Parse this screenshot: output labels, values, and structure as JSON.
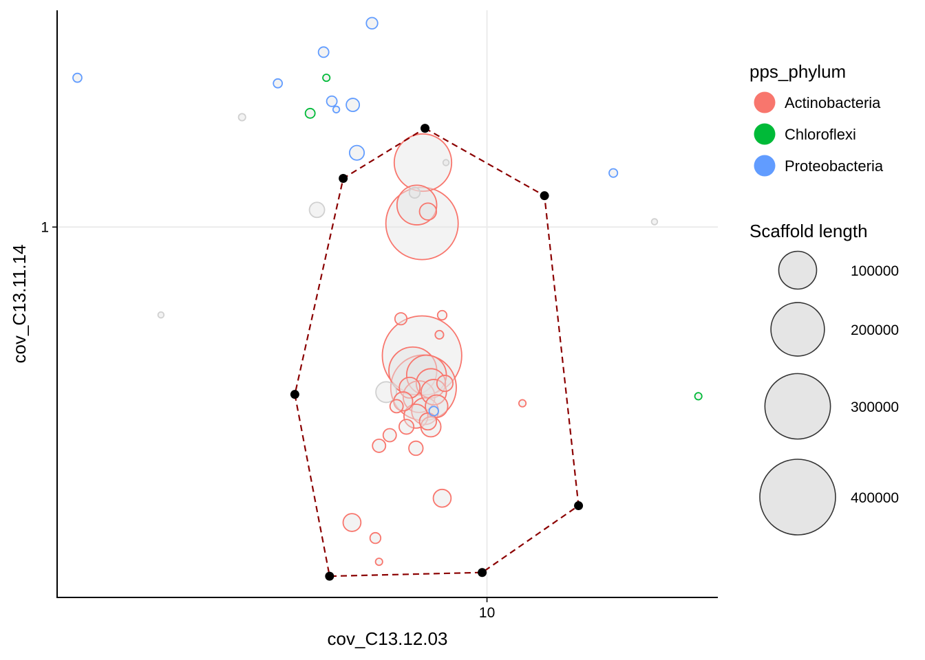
{
  "chart_data": {
    "type": "scatter",
    "xlabel": "cov_C13.12.03",
    "ylabel": "cov_C13.11.14",
    "x_scale": "log10",
    "y_scale": "log10",
    "xlim": [
      1.49,
      27.8
    ],
    "ylim": [
      0.128,
      3.33
    ],
    "x_ticks": [
      {
        "value": 10,
        "label": "10"
      }
    ],
    "y_ticks": [
      {
        "value": 1,
        "label": "1"
      }
    ],
    "grid": true,
    "legend_position": "right",
    "legend": {
      "color_title": "pps_phylum",
      "color_entries": [
        {
          "name": "Actinobacteria",
          "color": "#F8766D"
        },
        {
          "name": "Chloroflexi",
          "color": "#00BA38"
        },
        {
          "name": "Proteobacteria",
          "color": "#619CFF"
        }
      ],
      "size_title": "Scaffold length",
      "size_entries": [
        {
          "label": "100000",
          "value": 100000
        },
        {
          "label": "200000",
          "value": 200000
        },
        {
          "label": "300000",
          "value": 300000
        },
        {
          "label": "400000",
          "value": 400000
        }
      ]
    },
    "fill_color": "#E5E5E5",
    "unassigned_color": "#D0D0D0",
    "hull_color": "#8B0000",
    "selection_hull": [
      {
        "x": 7.6,
        "y": 1.73
      },
      {
        "x": 12.9,
        "y": 1.19
      },
      {
        "x": 15.0,
        "y": 0.213
      },
      {
        "x": 9.79,
        "y": 0.147
      },
      {
        "x": 4.98,
        "y": 0.144
      },
      {
        "x": 4.27,
        "y": 0.395
      },
      {
        "x": 5.29,
        "y": 1.31
      }
    ],
    "points": [
      {
        "phylum": "Proteobacteria",
        "x": 6.01,
        "y": 3.1,
        "length": 9000
      },
      {
        "phylum": "Proteobacteria",
        "x": 4.85,
        "y": 2.64,
        "length": 7500
      },
      {
        "phylum": "Proteobacteria",
        "x": 1.63,
        "y": 2.29,
        "length": 5500
      },
      {
        "phylum": "Proteobacteria",
        "x": 3.96,
        "y": 2.22,
        "length": 5500
      },
      {
        "phylum": "Chloroflexi",
        "x": 4.91,
        "y": 2.29,
        "length": 3500
      },
      {
        "phylum": "Proteobacteria",
        "x": 5.03,
        "y": 2.01,
        "length": 7500
      },
      {
        "phylum": "Proteobacteria",
        "x": 5.52,
        "y": 1.97,
        "length": 12000
      },
      {
        "phylum": "Proteobacteria",
        "x": 5.13,
        "y": 1.92,
        "length": 3000
      },
      {
        "phylum": "Chloroflexi",
        "x": 4.57,
        "y": 1.88,
        "length": 6500
      },
      {
        "phylum": "Unassigned",
        "x": 3.38,
        "y": 1.84,
        "length": 3500
      },
      {
        "phylum": "Proteobacteria",
        "x": 5.62,
        "y": 1.51,
        "length": 15000
      },
      {
        "phylum": "Unassigned",
        "x": 8.34,
        "y": 1.43,
        "length": 2500
      },
      {
        "phylum": "Proteobacteria",
        "x": 17.5,
        "y": 1.35,
        "length": 5000
      },
      {
        "phylum": "Actinobacteria",
        "x": 7.53,
        "y": 1.43,
        "length": 230000
      },
      {
        "phylum": "Unassigned",
        "x": 7.26,
        "y": 1.21,
        "length": 8000
      },
      {
        "phylum": "Actinobacteria",
        "x": 7.33,
        "y": 1.13,
        "length": 110000
      },
      {
        "phylum": "Actinobacteria",
        "x": 7.7,
        "y": 1.09,
        "length": 20000
      },
      {
        "phylum": "Unassigned",
        "x": 4.71,
        "y": 1.1,
        "length": 16000
      },
      {
        "phylum": "Actinobacteria",
        "x": 7.5,
        "y": 1.02,
        "length": 365000
      },
      {
        "phylum": "Unassigned",
        "x": 21.0,
        "y": 1.03,
        "length": 2500
      },
      {
        "phylum": "Unassigned",
        "x": 2.36,
        "y": 0.614,
        "length": 2500
      },
      {
        "phylum": "Actinobacteria",
        "x": 6.83,
        "y": 0.601,
        "length": 10000
      },
      {
        "phylum": "Actinobacteria",
        "x": 8.2,
        "y": 0.613,
        "length": 6000
      },
      {
        "phylum": "Actinobacteria",
        "x": 8.1,
        "y": 0.55,
        "length": 5000
      },
      {
        "phylum": "Actinobacteria",
        "x": 7.5,
        "y": 0.49,
        "length": 440000
      },
      {
        "phylum": "Actinobacteria",
        "x": 7.2,
        "y": 0.45,
        "length": 160000
      },
      {
        "phylum": "Actinobacteria",
        "x": 7.65,
        "y": 0.44,
        "length": 110000
      },
      {
        "phylum": "Actinobacteria",
        "x": 7.8,
        "y": 0.42,
        "length": 60000
      },
      {
        "phylum": "Actinobacteria",
        "x": 7.1,
        "y": 0.41,
        "length": 30000
      },
      {
        "phylum": "Actinobacteria",
        "x": 7.9,
        "y": 0.4,
        "length": 45000
      },
      {
        "phylum": "Actinobacteria",
        "x": 7.4,
        "y": 0.39,
        "length": 70000
      },
      {
        "phylum": "Actinobacteria",
        "x": 6.9,
        "y": 0.38,
        "length": 25000
      },
      {
        "phylum": "Actinobacteria",
        "x": 8.0,
        "y": 0.37,
        "length": 35000
      },
      {
        "phylum": "Actinobacteria",
        "x": 7.6,
        "y": 0.36,
        "length": 50000
      },
      {
        "phylum": "Actinobacteria",
        "x": 7.3,
        "y": 0.35,
        "length": 40000
      },
      {
        "phylum": "Actinobacteria",
        "x": 7.7,
        "y": 0.34,
        "length": 20000
      },
      {
        "phylum": "Actinobacteria",
        "x": 7.0,
        "y": 0.33,
        "length": 15000
      },
      {
        "phylum": "Actinobacteria",
        "x": 6.7,
        "y": 0.37,
        "length": 12000
      },
      {
        "phylum": "Actinobacteria",
        "x": 8.3,
        "y": 0.42,
        "length": 18000
      },
      {
        "phylum": "Actinobacteria",
        "x": 7.55,
        "y": 0.41,
        "length": 300000
      },
      {
        "phylum": "Proteobacteria",
        "x": 7.9,
        "y": 0.36,
        "length": 6000
      },
      {
        "phylum": "Unassigned",
        "x": 6.4,
        "y": 0.4,
        "length": 30000
      },
      {
        "phylum": "Actinobacteria",
        "x": 7.8,
        "y": 0.33,
        "length": 28000
      },
      {
        "phylum": "Actinobacteria",
        "x": 6.5,
        "y": 0.315,
        "length": 12000
      },
      {
        "phylum": "Actinobacteria",
        "x": 6.2,
        "y": 0.297,
        "length": 12000
      },
      {
        "phylum": "Actinobacteria",
        "x": 7.3,
        "y": 0.293,
        "length": 14000
      },
      {
        "phylum": "Actinobacteria",
        "x": 8.2,
        "y": 0.222,
        "length": 22000
      },
      {
        "phylum": "Actinobacteria",
        "x": 5.5,
        "y": 0.194,
        "length": 22000
      },
      {
        "phylum": "Actinobacteria",
        "x": 6.1,
        "y": 0.178,
        "length": 8000
      },
      {
        "phylum": "Actinobacteria",
        "x": 6.2,
        "y": 0.156,
        "length": 3500
      },
      {
        "phylum": "Actinobacteria",
        "x": 11.7,
        "y": 0.376,
        "length": 3500
      },
      {
        "phylum": "Chloroflexi",
        "x": 25.5,
        "y": 0.391,
        "length": 3500
      }
    ]
  }
}
